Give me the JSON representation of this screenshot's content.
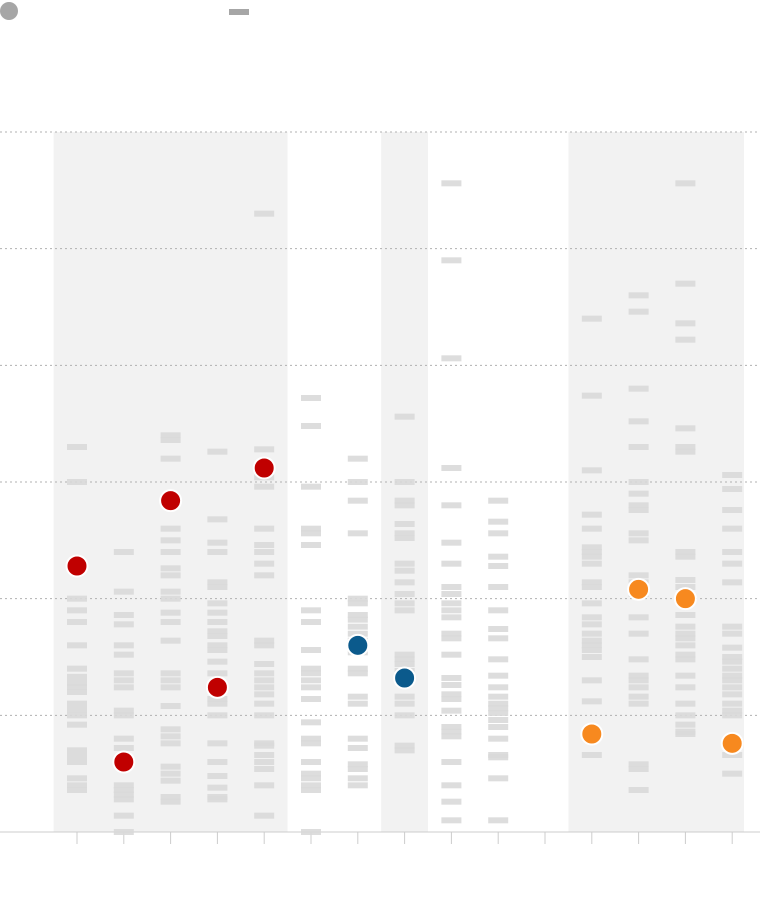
{
  "chart_data": {
    "type": "scatter",
    "title": "",
    "xlabel": "",
    "ylabel": "",
    "legend": {
      "placement": "top-left",
      "entries": [
        {
          "marker": "dot",
          "color": "#a6a6a6",
          "label": ""
        },
        {
          "marker": "dash",
          "color": "#a6a6a6",
          "label": ""
        }
      ]
    },
    "grid": true,
    "ylim": [
      0,
      6
    ],
    "y_gridlines": [
      1,
      2,
      3,
      4,
      5,
      6
    ],
    "columns": 15,
    "shaded_groups": [
      [
        1,
        5
      ],
      [
        8,
        8
      ],
      [
        12,
        15
      ]
    ],
    "colors": {
      "red": "#c00000",
      "blue": "#0b5a8c",
      "orange": "#f7891f",
      "dash_light": "#d9d9d9",
      "band": "#f2f2f2",
      "axis": "#cccccc"
    },
    "highlighted_points": [
      {
        "col": 1,
        "y": 2.28,
        "color": "red"
      },
      {
        "col": 2,
        "y": 0.6,
        "color": "red"
      },
      {
        "col": 3,
        "y": 2.84,
        "color": "red"
      },
      {
        "col": 4,
        "y": 1.24,
        "color": "red"
      },
      {
        "col": 5,
        "y": 3.12,
        "color": "red"
      },
      {
        "col": 7,
        "y": 1.6,
        "color": "blue"
      },
      {
        "col": 8,
        "y": 1.32,
        "color": "blue"
      },
      {
        "col": 12,
        "y": 0.84,
        "color": "orange"
      },
      {
        "col": 13,
        "y": 2.08,
        "color": "orange"
      },
      {
        "col": 14,
        "y": 2.0,
        "color": "orange"
      },
      {
        "col": 15,
        "y": 0.76,
        "color": "orange"
      }
    ],
    "distributions": [
      {
        "col": 1,
        "values": [
          3.3,
          3.0,
          2.0,
          1.9,
          1.8,
          1.6,
          1.4,
          1.33,
          1.28,
          1.24,
          1.2,
          1.1,
          1.05,
          1.0,
          0.92,
          0.7,
          0.65,
          0.6,
          0.46,
          0.4,
          0.36
        ]
      },
      {
        "col": 2,
        "values": [
          2.4,
          2.06,
          1.86,
          1.78,
          1.6,
          1.52,
          1.36,
          1.3,
          1.24,
          1.04,
          1.0,
          0.8,
          0.72,
          0.62,
          0.4,
          0.36,
          0.32,
          0.28,
          0.14,
          0.0
        ]
      },
      {
        "col": 3,
        "values": [
          3.4,
          3.36,
          3.2,
          2.6,
          2.5,
          2.4,
          2.26,
          2.2,
          2.06,
          2.0,
          1.88,
          1.8,
          1.64,
          1.36,
          1.3,
          1.24,
          1.08,
          0.88,
          0.82,
          0.76,
          0.56,
          0.5,
          0.44,
          0.3,
          0.26
        ]
      },
      {
        "col": 4,
        "values": [
          3.26,
          2.68,
          2.48,
          2.4,
          2.14,
          2.1,
          1.96,
          1.88,
          1.8,
          1.72,
          1.68,
          1.6,
          1.56,
          1.46,
          1.36,
          1.14,
          1.1,
          1.0,
          0.76,
          0.6,
          0.48,
          0.38,
          0.3,
          0.28
        ]
      },
      {
        "col": 5,
        "values": [
          5.3,
          3.28,
          3.04,
          2.96,
          2.6,
          2.46,
          2.4,
          2.3,
          2.2,
          1.64,
          1.6,
          1.44,
          1.36,
          1.3,
          1.24,
          1.18,
          1.1,
          1.0,
          0.76,
          0.74,
          0.66,
          0.6,
          0.54,
          0.4,
          0.14
        ]
      },
      {
        "col": 6,
        "values": [
          3.72,
          3.48,
          2.96,
          2.6,
          2.56,
          2.46,
          1.9,
          1.8,
          1.56,
          1.4,
          1.36,
          1.3,
          1.24,
          1.14,
          0.94,
          0.8,
          0.76,
          0.6,
          0.5,
          0.46,
          0.4,
          0.36,
          0.0
        ]
      },
      {
        "col": 7,
        "values": [
          3.2,
          3.0,
          2.84,
          2.56,
          2.0,
          1.96,
          1.86,
          1.82,
          1.76,
          1.7,
          1.64,
          1.54,
          1.4,
          1.36,
          1.16,
          1.1,
          0.8,
          0.72,
          0.58,
          0.54,
          0.46,
          0.4
        ]
      },
      {
        "col": 8,
        "values": [
          3.56,
          3.0,
          2.84,
          2.8,
          2.64,
          2.56,
          2.52,
          2.3,
          2.24,
          2.14,
          2.04,
          1.96,
          1.9,
          1.52,
          1.48,
          1.44,
          1.38,
          1.16,
          1.1,
          1.0,
          0.74,
          0.7
        ]
      },
      {
        "col": 9,
        "values": [
          5.56,
          4.9,
          4.06,
          3.12,
          2.8,
          2.48,
          2.3,
          2.1,
          2.04,
          1.96,
          1.9,
          1.84,
          1.7,
          1.66,
          1.52,
          1.32,
          1.26,
          1.18,
          1.14,
          1.04,
          0.9,
          0.86,
          0.82,
          0.6,
          0.4,
          0.26,
          0.1
        ]
      },
      {
        "col": 10,
        "values": [
          2.84,
          2.66,
          2.56,
          2.36,
          2.28,
          2.1,
          1.9,
          1.74,
          1.66,
          1.48,
          1.34,
          1.24,
          1.16,
          1.1,
          1.06,
          1.02,
          0.96,
          0.9,
          0.8,
          0.66,
          0.64,
          0.46,
          0.1
        ]
      },
      {
        "col": 12,
        "values": [
          4.4,
          3.74,
          3.1,
          2.72,
          2.6,
          2.44,
          2.4,
          2.36,
          2.3,
          2.14,
          2.1,
          1.96,
          1.84,
          1.78,
          1.7,
          1.64,
          1.6,
          1.56,
          1.5,
          1.3,
          1.12,
          0.66
        ]
      },
      {
        "col": 13,
        "values": [
          4.6,
          4.46,
          3.8,
          3.52,
          3.3,
          3.0,
          2.9,
          2.8,
          2.76,
          2.56,
          2.5,
          2.2,
          2.14,
          2.04,
          1.84,
          1.7,
          1.48,
          1.34,
          1.3,
          1.24,
          1.16,
          1.1,
          0.58,
          0.54,
          0.36
        ]
      },
      {
        "col": 14,
        "values": [
          5.56,
          4.7,
          4.36,
          4.22,
          3.46,
          3.3,
          3.26,
          2.4,
          2.36,
          2.16,
          2.1,
          1.86,
          1.76,
          1.7,
          1.66,
          1.6,
          1.52,
          1.48,
          1.34,
          1.24,
          1.1,
          1.0,
          0.92,
          0.86,
          0.84
        ]
      },
      {
        "col": 15,
        "values": [
          3.06,
          2.94,
          2.76,
          2.6,
          2.4,
          2.3,
          2.14,
          1.76,
          1.7,
          1.58,
          1.5,
          1.46,
          1.4,
          1.34,
          1.3,
          1.24,
          1.18,
          1.1,
          1.04,
          1.0,
          0.66,
          0.5
        ]
      }
    ]
  }
}
